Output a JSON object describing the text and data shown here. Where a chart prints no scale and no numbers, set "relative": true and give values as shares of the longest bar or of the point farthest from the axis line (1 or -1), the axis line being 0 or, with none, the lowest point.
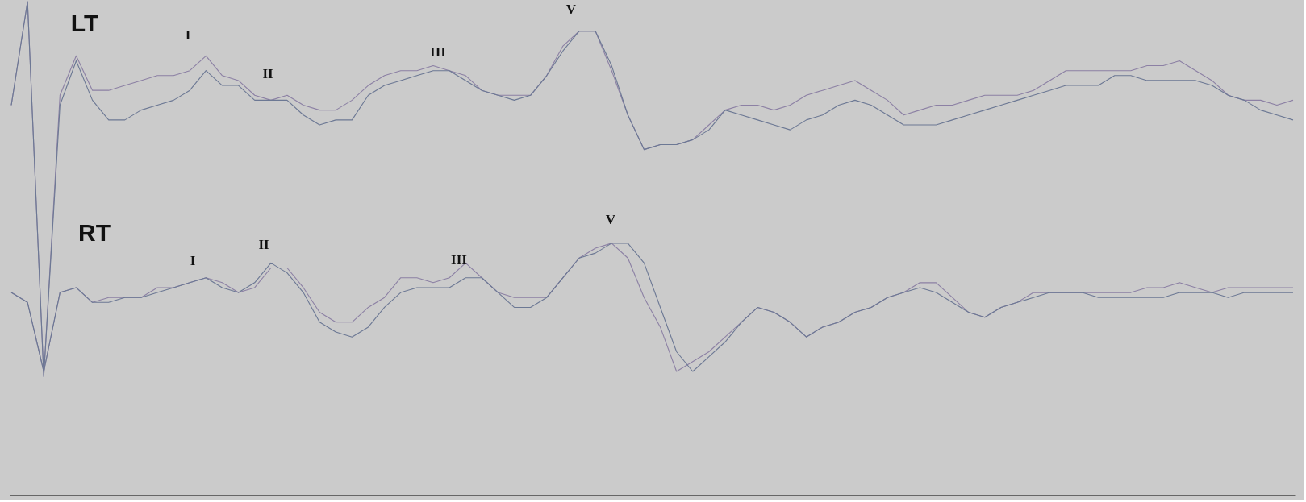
{
  "chart_data": {
    "type": "line",
    "relative": true,
    "marker": "none",
    "line_style": "solid",
    "categories": [
      null,
      null,
      null,
      null,
      null,
      null,
      null,
      null,
      null,
      null,
      null,
      null,
      null,
      null,
      null,
      null,
      null,
      null,
      null,
      null,
      null,
      null,
      null,
      null,
      null,
      null,
      null,
      null,
      null,
      null,
      null,
      null,
      null,
      null,
      null,
      null,
      null,
      null,
      null,
      null,
      null,
      null,
      null,
      null,
      null,
      null,
      null,
      null,
      null,
      null,
      null,
      null,
      null,
      null,
      null,
      null,
      null,
      null,
      null,
      null,
      null,
      null,
      null,
      null,
      null,
      null,
      null,
      null,
      null,
      null,
      null,
      null,
      null,
      null,
      null,
      null,
      null,
      null,
      null,
      null
    ],
    "annotations": [
      "LT",
      "I",
      "II",
      "III",
      "V",
      "RT",
      "I",
      "II",
      "III",
      "V"
    ],
    "series": [
      {
        "color": "#8c80a4",
        "values": [
          0.79,
          1.0,
          0.24,
          0.81,
          0.89,
          0.82,
          0.82,
          0.83,
          0.84,
          0.85,
          0.85,
          0.86,
          0.89,
          0.85,
          0.84,
          0.81,
          0.8,
          0.81,
          0.79,
          0.78,
          0.78,
          0.8,
          0.83,
          0.85,
          0.86,
          0.86,
          0.87,
          0.86,
          0.85,
          0.82,
          0.81,
          0.81,
          0.81,
          0.85,
          0.91,
          0.94,
          0.94,
          0.86,
          0.77,
          0.7,
          0.71,
          0.71,
          0.72,
          0.75,
          0.78,
          0.79,
          0.79,
          0.78,
          0.79,
          0.81,
          0.82,
          0.83,
          0.84,
          0.82,
          0.8,
          0.77,
          0.78,
          0.79,
          0.79,
          0.8,
          0.81,
          0.81,
          0.81,
          0.82,
          0.84,
          0.86,
          0.86,
          0.86,
          0.86,
          0.86,
          0.87,
          0.87,
          0.88,
          0.86,
          0.84,
          0.81,
          0.8,
          0.8,
          0.79,
          0.8
        ]
      },
      {
        "color": "#6c7894",
        "values": [
          0.79,
          1.0,
          0.24,
          0.79,
          0.88,
          0.8,
          0.76,
          0.76,
          0.78,
          0.79,
          0.8,
          0.82,
          0.86,
          0.83,
          0.83,
          0.8,
          0.8,
          0.8,
          0.77,
          0.75,
          0.76,
          0.76,
          0.81,
          0.83,
          0.84,
          0.85,
          0.86,
          0.86,
          0.84,
          0.82,
          0.81,
          0.8,
          0.81,
          0.85,
          0.9,
          0.94,
          0.94,
          0.87,
          0.77,
          0.7,
          0.71,
          0.71,
          0.72,
          0.74,
          0.78,
          0.77,
          0.76,
          0.75,
          0.74,
          0.76,
          0.77,
          0.79,
          0.8,
          0.79,
          0.77,
          0.75,
          0.75,
          0.75,
          0.76,
          0.77,
          0.78,
          0.79,
          0.8,
          0.81,
          0.82,
          0.83,
          0.83,
          0.83,
          0.85,
          0.85,
          0.84,
          0.84,
          0.84,
          0.84,
          0.83,
          0.81,
          0.8,
          0.78,
          0.77,
          0.76
        ]
      },
      {
        "color": "#8c80a4",
        "values": [
          0.41,
          0.39,
          0.25,
          0.41,
          0.42,
          0.39,
          0.4,
          0.4,
          0.4,
          0.42,
          0.42,
          0.43,
          0.44,
          0.43,
          0.41,
          0.42,
          0.46,
          0.46,
          0.42,
          0.37,
          0.35,
          0.35,
          0.38,
          0.4,
          0.44,
          0.44,
          0.43,
          0.44,
          0.47,
          0.44,
          0.41,
          0.4,
          0.4,
          0.4,
          0.44,
          0.48,
          0.5,
          0.51,
          0.48,
          0.4,
          0.34,
          0.25,
          0.27,
          0.29,
          0.32,
          0.35,
          0.38,
          0.37,
          0.35,
          0.32,
          0.34,
          0.35,
          0.37,
          0.38,
          0.4,
          0.41,
          0.43,
          0.43,
          0.4,
          0.37,
          0.36,
          0.38,
          0.39,
          0.41,
          0.41,
          0.41,
          0.41,
          0.41,
          0.41,
          0.41,
          0.42,
          0.42,
          0.43,
          0.42,
          0.41,
          0.42,
          0.42,
          0.42,
          0.42,
          0.42
        ]
      },
      {
        "color": "#6c7894",
        "values": [
          0.41,
          0.39,
          0.25,
          0.41,
          0.42,
          0.39,
          0.39,
          0.4,
          0.4,
          0.41,
          0.42,
          0.43,
          0.44,
          0.42,
          0.41,
          0.43,
          0.47,
          0.45,
          0.41,
          0.35,
          0.33,
          0.32,
          0.34,
          0.38,
          0.41,
          0.42,
          0.42,
          0.42,
          0.44,
          0.44,
          0.41,
          0.38,
          0.38,
          0.4,
          0.44,
          0.48,
          0.49,
          0.51,
          0.51,
          0.47,
          0.38,
          0.29,
          0.25,
          0.28,
          0.31,
          0.35,
          0.38,
          0.37,
          0.35,
          0.32,
          0.34,
          0.35,
          0.37,
          0.38,
          0.4,
          0.41,
          0.42,
          0.41,
          0.39,
          0.37,
          0.36,
          0.38,
          0.39,
          0.4,
          0.41,
          0.41,
          0.41,
          0.4,
          0.4,
          0.4,
          0.4,
          0.4,
          0.41,
          0.41,
          0.41,
          0.4,
          0.41,
          0.41,
          0.41,
          0.41
        ]
      }
    ]
  }
}
